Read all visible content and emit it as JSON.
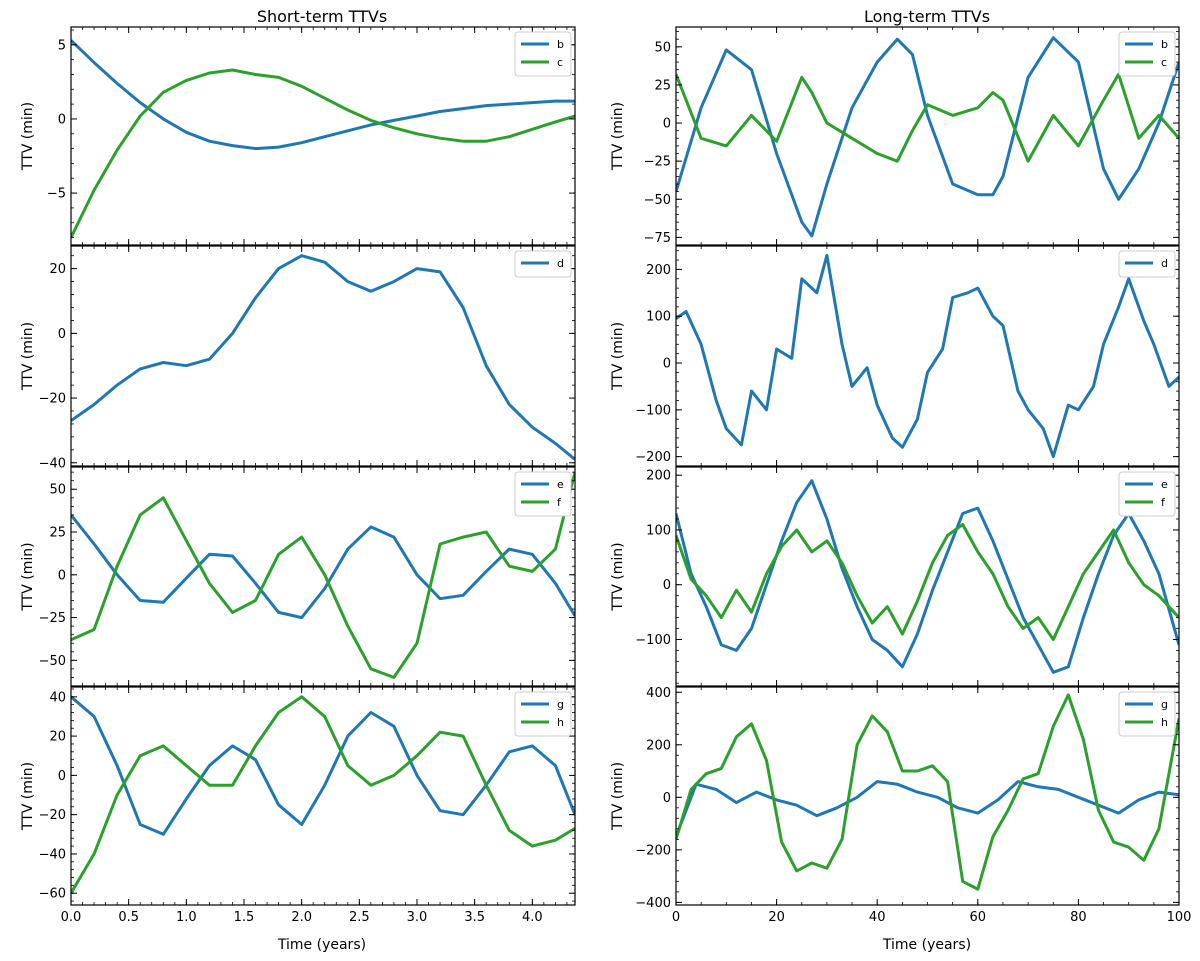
{
  "figure": {
    "titles": [
      "Short-term TTVs",
      "Long-term TTVs"
    ],
    "xlabel": "Time (years)",
    "ylabel": "TTV (min)"
  },
  "colors": {
    "b": "#1f77b4",
    "c": "#2ca02c",
    "d": "#1f77b4",
    "e": "#1f77b4",
    "f": "#2ca02c",
    "g": "#1f77b4",
    "h": "#2ca02c"
  },
  "chart_data": [
    {
      "type": "line",
      "panel": "short-1",
      "column": "left",
      "title": "Short-term TTVs",
      "xlabel": "",
      "ylabel": "TTV (min)",
      "xlim": [
        0,
        4.37
      ],
      "ylim": [
        -8.5,
        6.2
      ],
      "xticks": [
        0,
        0.5,
        1,
        1.5,
        2,
        2.5,
        3,
        3.5,
        4
      ],
      "yticks": [
        -5,
        0,
        5
      ],
      "ytick_labels": [
        "−5",
        "0",
        "5"
      ],
      "series": [
        {
          "name": "b",
          "color": "#1f77b4",
          "x": [
            0,
            0.2,
            0.4,
            0.6,
            0.8,
            1.0,
            1.2,
            1.4,
            1.6,
            1.8,
            2.0,
            2.2,
            2.4,
            2.6,
            2.8,
            3.0,
            3.2,
            3.4,
            3.6,
            3.8,
            4.0,
            4.2,
            4.37
          ],
          "values": [
            5.3,
            3.8,
            2.4,
            1.1,
            0.0,
            -0.9,
            -1.5,
            -1.8,
            -2.0,
            -1.9,
            -1.6,
            -1.2,
            -0.8,
            -0.4,
            -0.1,
            0.2,
            0.5,
            0.7,
            0.9,
            1.0,
            1.1,
            1.2,
            1.2
          ]
        },
        {
          "name": "c",
          "color": "#2ca02c",
          "x": [
            0,
            0.2,
            0.4,
            0.6,
            0.8,
            1.0,
            1.2,
            1.4,
            1.6,
            1.8,
            2.0,
            2.2,
            2.4,
            2.6,
            2.8,
            3.0,
            3.2,
            3.4,
            3.6,
            3.8,
            4.0,
            4.2,
            4.37
          ],
          "values": [
            -8.0,
            -4.8,
            -2.1,
            0.2,
            1.8,
            2.6,
            3.1,
            3.3,
            3.0,
            2.8,
            2.2,
            1.4,
            0.6,
            -0.1,
            -0.6,
            -1.0,
            -1.3,
            -1.5,
            -1.5,
            -1.2,
            -0.7,
            -0.2,
            0.2
          ]
        }
      ]
    },
    {
      "type": "line",
      "panel": "short-2",
      "column": "left",
      "xlabel": "",
      "ylabel": "TTV (min)",
      "xlim": [
        0,
        4.37
      ],
      "ylim": [
        -41,
        27
      ],
      "xticks": [
        0,
        0.5,
        1,
        1.5,
        2,
        2.5,
        3,
        3.5,
        4
      ],
      "yticks": [
        -40,
        -20,
        0,
        20
      ],
      "ytick_labels": [
        "−40",
        "−20",
        "0",
        "20"
      ],
      "series": [
        {
          "name": "d",
          "color": "#1f77b4",
          "x": [
            0,
            0.2,
            0.4,
            0.6,
            0.8,
            1.0,
            1.2,
            1.4,
            1.6,
            1.8,
            2.0,
            2.2,
            2.4,
            2.6,
            2.8,
            3.0,
            3.2,
            3.4,
            3.6,
            3.8,
            4.0,
            4.2,
            4.37
          ],
          "values": [
            -27,
            -22,
            -16,
            -11,
            -9,
            -10,
            -8,
            0,
            11,
            20,
            24,
            22,
            16,
            13,
            16,
            20,
            19,
            8,
            -10,
            -22,
            -29,
            -34,
            -39
          ]
        }
      ]
    },
    {
      "type": "line",
      "panel": "short-3",
      "column": "left",
      "xlabel": "",
      "ylabel": "TTV (min)",
      "xlim": [
        0,
        4.37
      ],
      "ylim": [
        -65,
        63
      ],
      "xticks": [
        0,
        0.5,
        1,
        1.5,
        2,
        2.5,
        3,
        3.5,
        4
      ],
      "yticks": [
        -50,
        -25,
        0,
        25,
        50
      ],
      "ytick_labels": [
        "−50",
        "−25",
        "0",
        "25",
        "50"
      ],
      "series": [
        {
          "name": "e",
          "color": "#1f77b4",
          "x": [
            0,
            0.2,
            0.4,
            0.6,
            0.8,
            1.0,
            1.2,
            1.4,
            1.6,
            1.8,
            2.0,
            2.2,
            2.4,
            2.6,
            2.8,
            3.0,
            3.2,
            3.4,
            3.6,
            3.8,
            4.0,
            4.2,
            4.37
          ],
          "values": [
            35,
            18,
            0,
            -15,
            -16,
            -2,
            12,
            11,
            -5,
            -22,
            -25,
            -8,
            15,
            28,
            22,
            0,
            -14,
            -12,
            2,
            15,
            12,
            -5,
            -24
          ]
        },
        {
          "name": "f",
          "color": "#2ca02c",
          "x": [
            0,
            0.2,
            0.4,
            0.6,
            0.8,
            1.0,
            1.2,
            1.4,
            1.6,
            1.8,
            2.0,
            2.2,
            2.4,
            2.6,
            2.8,
            3.0,
            3.2,
            3.4,
            3.6,
            3.8,
            4.0,
            4.2,
            4.37
          ],
          "values": [
            -38,
            -32,
            5,
            35,
            45,
            20,
            -5,
            -22,
            -15,
            12,
            22,
            0,
            -30,
            -55,
            -60,
            -40,
            18,
            22,
            25,
            5,
            2,
            15,
            60
          ]
        }
      ]
    },
    {
      "type": "line",
      "panel": "short-4",
      "column": "left",
      "xlabel": "Time (years)",
      "ylabel": "TTV (min)",
      "xlim": [
        0,
        4.37
      ],
      "ylim": [
        -66,
        45
      ],
      "xticks": [
        0,
        0.5,
        1,
        1.5,
        2,
        2.5,
        3,
        3.5,
        4
      ],
      "xtick_labels": [
        "0.0",
        "0.5",
        "1.0",
        "1.5",
        "2.0",
        "2.5",
        "3.0",
        "3.5",
        "4.0"
      ],
      "yticks": [
        -60,
        -40,
        -20,
        0,
        20,
        40
      ],
      "ytick_labels": [
        "−60",
        "−40",
        "−20",
        "0",
        "20",
        "40"
      ],
      "series": [
        {
          "name": "g",
          "color": "#1f77b4",
          "x": [
            0,
            0.2,
            0.4,
            0.6,
            0.8,
            1.0,
            1.2,
            1.4,
            1.6,
            1.8,
            2.0,
            2.2,
            2.4,
            2.6,
            2.8,
            3.0,
            3.2,
            3.4,
            3.6,
            3.8,
            4.0,
            4.2,
            4.37
          ],
          "values": [
            40,
            30,
            5,
            -25,
            -30,
            -12,
            5,
            15,
            8,
            -15,
            -25,
            -5,
            20,
            32,
            25,
            0,
            -18,
            -20,
            -5,
            12,
            15,
            5,
            -20
          ]
        },
        {
          "name": "h",
          "color": "#2ca02c",
          "x": [
            0,
            0.2,
            0.4,
            0.6,
            0.8,
            1.0,
            1.2,
            1.4,
            1.6,
            1.8,
            2.0,
            2.2,
            2.4,
            2.6,
            2.8,
            3.0,
            3.2,
            3.4,
            3.6,
            3.8,
            4.0,
            4.2,
            4.37
          ],
          "values": [
            -60,
            -40,
            -10,
            10,
            15,
            5,
            -5,
            -5,
            15,
            32,
            40,
            30,
            5,
            -5,
            0,
            10,
            22,
            20,
            -5,
            -28,
            -36,
            -33,
            -27
          ]
        }
      ]
    },
    {
      "type": "line",
      "panel": "long-1",
      "column": "right",
      "title": "Long-term TTVs",
      "xlabel": "",
      "ylabel": "TTV (min)",
      "xlim": [
        0,
        100
      ],
      "ylim": [
        -80,
        63
      ],
      "xticks": [
        0,
        20,
        40,
        60,
        80,
        100
      ],
      "yticks": [
        -75,
        -50,
        -25,
        0,
        25,
        50
      ],
      "ytick_labels": [
        "−75",
        "−50",
        "−25",
        "0",
        "25",
        "50"
      ],
      "series": [
        {
          "name": "b",
          "color": "#1f77b4",
          "x": [
            0,
            5,
            10,
            15,
            20,
            25,
            27,
            30,
            35,
            40,
            44,
            47,
            50,
            55,
            60,
            63,
            65,
            70,
            75,
            80,
            85,
            88,
            92,
            96,
            100
          ],
          "values": [
            -45,
            10,
            48,
            35,
            -20,
            -65,
            -74,
            -40,
            10,
            40,
            55,
            45,
            5,
            -40,
            -47,
            -47,
            -35,
            30,
            56,
            40,
            -30,
            -50,
            -30,
            0,
            40
          ]
        },
        {
          "name": "c",
          "color": "#2ca02c",
          "x": [
            0,
            5,
            10,
            15,
            20,
            25,
            27,
            30,
            35,
            40,
            44,
            47,
            50,
            55,
            60,
            63,
            65,
            70,
            75,
            80,
            85,
            88,
            92,
            96,
            100
          ],
          "values": [
            32,
            -10,
            -15,
            5,
            -12,
            30,
            20,
            0,
            -10,
            -20,
            -25,
            -5,
            12,
            5,
            10,
            20,
            15,
            -25,
            5,
            -15,
            15,
            32,
            -10,
            5,
            -10
          ]
        }
      ]
    },
    {
      "type": "line",
      "panel": "long-2",
      "column": "right",
      "xlabel": "",
      "ylabel": "TTV (min)",
      "xlim": [
        0,
        100
      ],
      "ylim": [
        -220,
        250
      ],
      "xticks": [
        0,
        20,
        40,
        60,
        80,
        100
      ],
      "yticks": [
        -200,
        -100,
        0,
        100,
        200
      ],
      "ytick_labels": [
        "−200",
        "−100",
        "0",
        "100",
        "200"
      ],
      "series": [
        {
          "name": "d",
          "color": "#1f77b4",
          "x": [
            0,
            2,
            5,
            8,
            10,
            13,
            15,
            18,
            20,
            23,
            25,
            28,
            30,
            33,
            35,
            38,
            40,
            43,
            45,
            48,
            50,
            53,
            55,
            58,
            60,
            63,
            65,
            68,
            70,
            73,
            75,
            78,
            80,
            83,
            85,
            88,
            90,
            93,
            95,
            98,
            100
          ],
          "values": [
            95,
            110,
            40,
            -80,
            -140,
            -175,
            -60,
            -100,
            30,
            10,
            180,
            150,
            230,
            40,
            -50,
            -10,
            -90,
            -160,
            -180,
            -120,
            -20,
            30,
            140,
            150,
            160,
            100,
            80,
            -60,
            -100,
            -140,
            -200,
            -90,
            -100,
            -50,
            40,
            120,
            180,
            90,
            40,
            -50,
            -30
          ]
        }
      ]
    },
    {
      "type": "line",
      "panel": "long-3",
      "column": "right",
      "xlabel": "",
      "ylabel": "TTV (min)",
      "xlim": [
        0,
        100
      ],
      "ylim": [
        -185,
        215
      ],
      "xticks": [
        0,
        20,
        40,
        60,
        80,
        100
      ],
      "yticks": [
        -100,
        0,
        100,
        200
      ],
      "ytick_labels": [
        "−100",
        "0",
        "100",
        "200"
      ],
      "series": [
        {
          "name": "e",
          "color": "#1f77b4",
          "x": [
            0,
            3,
            6,
            9,
            12,
            15,
            18,
            21,
            24,
            27,
            30,
            33,
            36,
            39,
            42,
            45,
            48,
            51,
            54,
            57,
            60,
            63,
            66,
            69,
            72,
            75,
            78,
            81,
            84,
            87,
            90,
            93,
            96,
            100
          ],
          "values": [
            130,
            20,
            -40,
            -110,
            -120,
            -80,
            0,
            80,
            150,
            190,
            120,
            30,
            -40,
            -100,
            -120,
            -150,
            -90,
            -10,
            60,
            130,
            140,
            80,
            10,
            -60,
            -110,
            -160,
            -150,
            -60,
            20,
            90,
            130,
            80,
            20,
            -110
          ]
        },
        {
          "name": "f",
          "color": "#2ca02c",
          "x": [
            0,
            3,
            6,
            9,
            12,
            15,
            18,
            21,
            24,
            27,
            30,
            33,
            36,
            39,
            42,
            45,
            48,
            51,
            54,
            57,
            60,
            63,
            66,
            69,
            72,
            75,
            78,
            81,
            84,
            87,
            90,
            93,
            96,
            100
          ],
          "values": [
            90,
            10,
            -20,
            -60,
            -10,
            -50,
            20,
            70,
            100,
            60,
            80,
            40,
            -20,
            -70,
            -40,
            -90,
            -30,
            40,
            90,
            110,
            60,
            20,
            -40,
            -80,
            -60,
            -100,
            -40,
            20,
            60,
            100,
            40,
            0,
            -20,
            -60
          ]
        }
      ]
    },
    {
      "type": "line",
      "panel": "long-4",
      "column": "right",
      "xlabel": "Time (years)",
      "ylabel": "TTV (min)",
      "xlim": [
        0,
        100
      ],
      "ylim": [
        -410,
        420
      ],
      "xticks": [
        0,
        20,
        40,
        60,
        80,
        100
      ],
      "yticks": [
        -400,
        -200,
        0,
        200,
        400
      ],
      "ytick_labels": [
        "−400",
        "−200",
        "0",
        "200",
        "400"
      ],
      "series": [
        {
          "name": "g",
          "color": "#1f77b4",
          "x": [
            0,
            4,
            8,
            12,
            16,
            20,
            24,
            28,
            32,
            36,
            40,
            44,
            48,
            52,
            56,
            60,
            64,
            68,
            72,
            76,
            80,
            84,
            88,
            92,
            96,
            100
          ],
          "values": [
            -150,
            50,
            30,
            -20,
            20,
            -10,
            -30,
            -70,
            -40,
            0,
            60,
            50,
            20,
            0,
            -40,
            -60,
            -10,
            60,
            40,
            30,
            0,
            -30,
            -60,
            -10,
            20,
            10
          ]
        },
        {
          "name": "h",
          "color": "#2ca02c",
          "x": [
            0,
            3,
            6,
            9,
            12,
            15,
            18,
            21,
            24,
            27,
            30,
            33,
            36,
            39,
            42,
            45,
            48,
            51,
            54,
            57,
            60,
            63,
            66,
            69,
            72,
            75,
            78,
            81,
            84,
            87,
            90,
            93,
            96,
            100
          ],
          "values": [
            -160,
            30,
            90,
            110,
            230,
            280,
            140,
            -170,
            -280,
            -250,
            -270,
            -160,
            200,
            310,
            250,
            100,
            100,
            120,
            60,
            -320,
            -350,
            -150,
            -50,
            70,
            90,
            270,
            390,
            220,
            -50,
            -170,
            -190,
            -240,
            -120,
            300
          ]
        }
      ]
    }
  ]
}
